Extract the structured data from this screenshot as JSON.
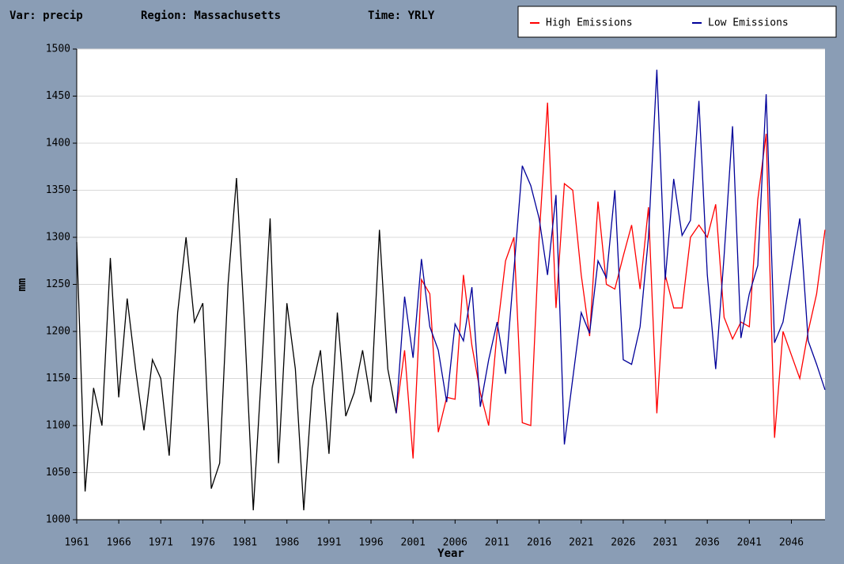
{
  "chart_data": {
    "type": "line",
    "header": [
      "Var: precip",
      "Region: Massachusetts",
      "Time: YRLY"
    ],
    "xlabel": "Year",
    "ylabel": "mm",
    "x": [
      1961,
      1962,
      1963,
      1964,
      1965,
      1966,
      1967,
      1968,
      1969,
      1970,
      1971,
      1972,
      1973,
      1974,
      1975,
      1976,
      1977,
      1978,
      1979,
      1980,
      1981,
      1982,
      1983,
      1984,
      1985,
      1986,
      1987,
      1988,
      1989,
      1990,
      1991,
      1992,
      1993,
      1994,
      1995,
      1996,
      1997,
      1998,
      1999,
      2000,
      2001,
      2002,
      2003,
      2004,
      2005,
      2006,
      2007,
      2008,
      2009,
      2010,
      2011,
      2012,
      2013,
      2014,
      2015,
      2016,
      2017,
      2018,
      2019,
      2020,
      2021,
      2022,
      2023,
      2024,
      2025,
      2026,
      2027,
      2028,
      2029,
      2030,
      2031,
      2032,
      2033,
      2034,
      2035,
      2036,
      2037,
      2038,
      2039,
      2040,
      2041,
      2042,
      2043,
      2044,
      2045,
      2046,
      2047,
      2048,
      2049,
      2050
    ],
    "series": [
      {
        "color": "#000000",
        "values": [
          1295,
          1030,
          1140,
          1100,
          1278,
          1130,
          1235,
          1160,
          1095,
          1170,
          1150,
          1068,
          1220,
          1300,
          1210,
          1230,
          1033,
          1060,
          1250,
          1363,
          1200,
          1010,
          1160,
          1320,
          1060,
          1230,
          1160,
          1010,
          1140,
          1180,
          1070,
          1220,
          1110,
          1135,
          1180,
          1125,
          1308,
          1160,
          1113,
          null,
          null,
          null,
          null,
          null,
          null,
          null,
          null,
          null,
          null,
          null,
          null,
          null,
          null,
          null,
          null,
          null,
          null,
          null,
          null,
          null,
          null,
          null,
          null,
          null,
          null,
          null,
          null,
          null,
          null,
          null,
          null,
          null,
          null,
          null,
          null,
          null,
          null,
          null,
          null,
          null,
          null,
          null,
          null,
          null,
          null,
          null,
          null,
          null,
          null,
          null
        ]
      },
      {
        "name": "High Emissions",
        "color": "#ff0000",
        "values": [
          null,
          null,
          null,
          null,
          null,
          null,
          null,
          null,
          null,
          null,
          null,
          null,
          null,
          null,
          null,
          null,
          null,
          null,
          null,
          null,
          null,
          null,
          null,
          null,
          null,
          null,
          null,
          null,
          null,
          null,
          null,
          null,
          null,
          null,
          null,
          null,
          null,
          null,
          1113,
          1180,
          1065,
          1255,
          1240,
          1093,
          1130,
          1128,
          1260,
          1185,
          1135,
          1100,
          1200,
          1275,
          1300,
          1103,
          1100,
          1300,
          1443,
          1225,
          1357,
          1350,
          1260,
          1195,
          1338,
          1250,
          1245,
          1280,
          1313,
          1245,
          1332,
          1113,
          1260,
          1225,
          1225,
          1300,
          1313,
          1300,
          1335,
          1215,
          1192,
          1210,
          1205,
          1340,
          1410,
          1087,
          1200,
          1175,
          1150,
          1200,
          1240,
          1308
        ]
      },
      {
        "name": "Low Emissions",
        "color": "#000099",
        "values": [
          null,
          null,
          null,
          null,
          null,
          null,
          null,
          null,
          null,
          null,
          null,
          null,
          null,
          null,
          null,
          null,
          null,
          null,
          null,
          null,
          null,
          null,
          null,
          null,
          null,
          null,
          null,
          null,
          null,
          null,
          null,
          null,
          null,
          null,
          null,
          null,
          null,
          null,
          1113,
          1237,
          1172,
          1277,
          1205,
          1180,
          1125,
          1208,
          1190,
          1247,
          1120,
          1170,
          1210,
          1155,
          1265,
          1376,
          1355,
          1320,
          1260,
          1345,
          1080,
          1150,
          1220,
          1198,
          1275,
          1257,
          1350,
          1170,
          1165,
          1205,
          1300,
          1478,
          1255,
          1362,
          1302,
          1318,
          1445,
          1260,
          1160,
          1280,
          1418,
          1193,
          1240,
          1270,
          1452,
          1188,
          1210,
          1265,
          1320,
          1190,
          1165,
          1138
        ]
      }
    ],
    "xlim": [
      1961,
      2050
    ],
    "ylim": [
      1000,
      1500
    ],
    "xticks": [
      1961,
      1966,
      1971,
      1976,
      1981,
      1986,
      1991,
      1996,
      2001,
      2006,
      2011,
      2016,
      2021,
      2026,
      2031,
      2036,
      2041,
      2046
    ],
    "yticks": [
      1000,
      1050,
      1100,
      1150,
      1200,
      1250,
      1300,
      1350,
      1400,
      1450,
      1500
    ],
    "grid": true,
    "legend": "top-right"
  }
}
